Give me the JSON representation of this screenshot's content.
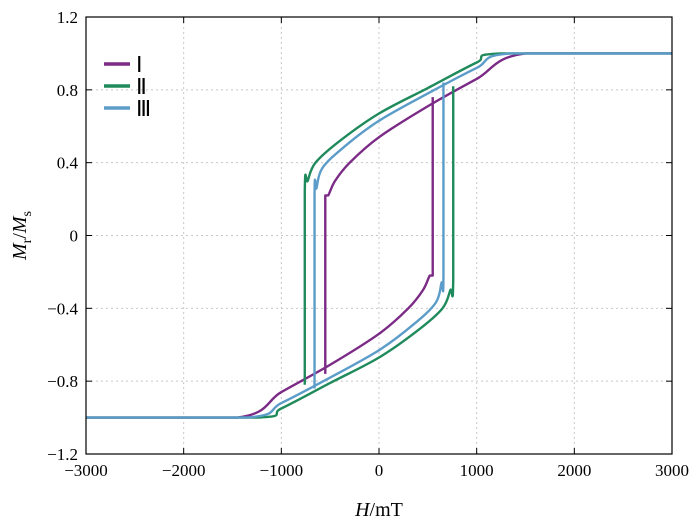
{
  "chart_data": {
    "type": "line",
    "title": "",
    "xlabel": {
      "italic": "H",
      "rest": "/mT"
    },
    "ylabel": {
      "m1": "M",
      "sub1": "r",
      "sep": "/",
      "m2": "M",
      "sub2": "s"
    },
    "xlim": [
      -3000,
      3000
    ],
    "ylim": [
      -1.2,
      1.2
    ],
    "xticks": [
      -3000,
      -2000,
      -1000,
      0,
      1000,
      2000,
      3000
    ],
    "xtick_labels": [
      "−3000",
      "−2000",
      "−1000",
      "0",
      "1000",
      "2000",
      "3000"
    ],
    "yticks": [
      -1.2,
      -0.8,
      -0.4,
      0,
      0.4,
      0.8,
      1.2
    ],
    "ytick_labels": [
      "−1.2",
      "−0.8",
      "−0.4",
      "0",
      "0.4",
      "0.8",
      "1.2"
    ],
    "grid": true,
    "legend_position": "top-left",
    "series": [
      {
        "name": "Ⅰ",
        "color": "#7b2a86",
        "upper_branch": [
          [
            3000,
            1.0
          ],
          [
            1500,
            1.0
          ],
          [
            1000,
            0.86
          ],
          [
            500,
            0.71
          ],
          [
            0,
            0.54
          ],
          [
            -300,
            0.4
          ],
          [
            -450,
            0.3
          ],
          [
            -520,
            0.22
          ],
          [
            -550,
            0.22
          ],
          [
            -550,
            -0.76
          ]
        ],
        "lower_branch": [
          [
            -3000,
            -1.0
          ],
          [
            -1450,
            -1.0
          ],
          [
            -1000,
            -0.86
          ],
          [
            -500,
            -0.71
          ],
          [
            0,
            -0.54
          ],
          [
            300,
            -0.4
          ],
          [
            450,
            -0.3
          ],
          [
            520,
            -0.22
          ],
          [
            550,
            -0.22
          ],
          [
            550,
            0.76
          ]
        ]
      },
      {
        "name": "Ⅱ",
        "color": "#1f8a5b",
        "upper_branch": [
          [
            3000,
            1.0
          ],
          [
            1250,
            1.0
          ],
          [
            1000,
            0.95
          ],
          [
            500,
            0.81
          ],
          [
            0,
            0.67
          ],
          [
            -400,
            0.52
          ],
          [
            -650,
            0.4
          ],
          [
            -730,
            0.3
          ],
          [
            -760,
            0.24
          ],
          [
            -760,
            -0.82
          ]
        ],
        "lower_branch": [
          [
            -3000,
            -1.0
          ],
          [
            -1250,
            -1.0
          ],
          [
            -1000,
            -0.95
          ],
          [
            -500,
            -0.81
          ],
          [
            0,
            -0.67
          ],
          [
            400,
            -0.52
          ],
          [
            650,
            -0.4
          ],
          [
            730,
            -0.3
          ],
          [
            760,
            -0.24
          ],
          [
            760,
            0.82
          ]
        ]
      },
      {
        "name": "Ⅲ",
        "color": "#5b9cc9",
        "upper_branch": [
          [
            3000,
            1.0
          ],
          [
            1350,
            1.0
          ],
          [
            1000,
            0.92
          ],
          [
            500,
            0.78
          ],
          [
            0,
            0.63
          ],
          [
            -350,
            0.49
          ],
          [
            -580,
            0.37
          ],
          [
            -640,
            0.26
          ],
          [
            -660,
            0.22
          ],
          [
            -660,
            -0.84
          ]
        ],
        "lower_branch": [
          [
            -3000,
            -1.0
          ],
          [
            -1350,
            -1.0
          ],
          [
            -1000,
            -0.92
          ],
          [
            -500,
            -0.78
          ],
          [
            0,
            -0.63
          ],
          [
            350,
            -0.49
          ],
          [
            580,
            -0.37
          ],
          [
            640,
            -0.26
          ],
          [
            660,
            -0.22
          ],
          [
            660,
            0.84
          ]
        ]
      }
    ]
  }
}
